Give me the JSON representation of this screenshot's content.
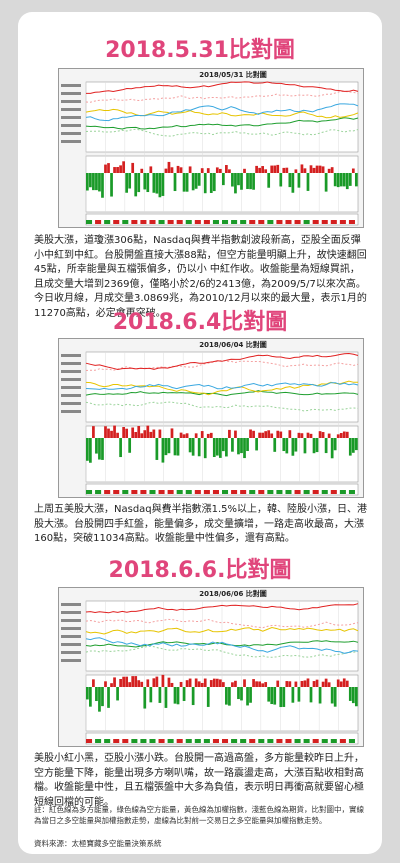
{
  "sections": [
    {
      "title": "2018.5.31比對圖",
      "chart_title": "2018/05/31 比對圖",
      "text": "美股大漲，道瓊漲306點，Nasdaq與費半指數創波段新高，亞股全面反彈小中紅到中紅。台股開盤直接大漲88點，但空方能量明顯上升，故快速翻回45點，所幸能量與五檔張偏多，仍以小 中紅作收。收盤能量為短線買訊，且成交量大增到2369億，僅略小於2/6的2413億，為2009/5/7以來次高。今日收月線，月成交量3.0869兆，為2010/12月以來的最大量，表示1月的11270高點，必定會再突破。"
    },
    {
      "title": "2018.6.4比對圖",
      "chart_title": "2018/06/04 比對圖",
      "text": "上周五美股大漲，Nasdaq與費半指數漲1.5%以上，韓、陸股小漲，日、港股大漲。台股開四手紅盤，能量偏多，成交量擴增，一路走高收最高，大漲160點，突破11034高點。收盤能量中性偏多，還有高點。"
    },
    {
      "title": "2018.6.6.比對圖",
      "chart_title": "2018/06/06 比對圖",
      "text": "美股小紅小黑，亞股小漲小跌。台股開一高過高盤，多方能量較昨日上升，空方能量下降，能量出現多方喇叭嘴，故一路震盪走高，大漲百點收相對高檔。收盤能量中性，且五檔張盤中大多為負值，表示明日再衝高就要留心極短線回檔的可能。"
    }
  ],
  "note": "註：紅色線為多方能量，綠色線為空方能量，黃色線為加權指數，淺藍色線為期貨，比對圖中，實線為當日之多空能量與加權指數走勢，虛線為比對前一交易日之多空能量與加權指數走勢。",
  "source": "資料來源：太極寶藏多空能量決策系統"
}
